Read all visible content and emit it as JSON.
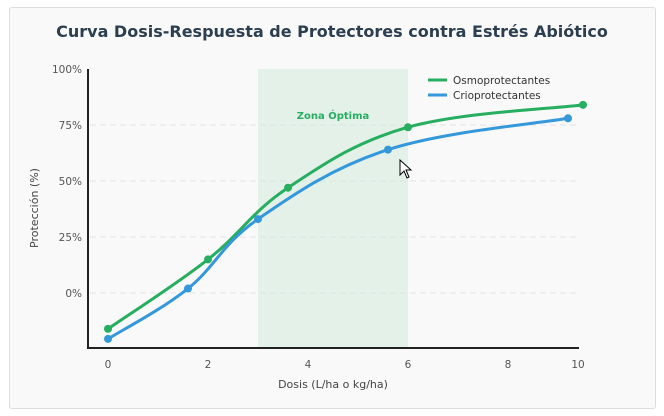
{
  "chart_data": {
    "type": "line",
    "title": "Curva Dosis-Respuesta de Protectores contra Estrés Abiótico",
    "xlabel": "Dosis (L/ha o kg/ha)",
    "ylabel": "Protección (%)",
    "xticks": [
      "0",
      "2",
      "4",
      "6",
      "8",
      "10"
    ],
    "yticks": [
      "0%",
      "25%",
      "50%",
      "75%",
      "100%"
    ],
    "ylim": [
      -25,
      100
    ],
    "grid": "horizontal dashed",
    "legend": "top-right",
    "annotation": {
      "label": "Zona Óptima",
      "x_range": [
        3,
        6
      ],
      "color": "#27ae60"
    },
    "series": [
      {
        "name": "Osmoprotectantes",
        "color": "#27ae60",
        "x": [
          0,
          2,
          3.6,
          6,
          9.5
        ],
        "y": [
          -16,
          15,
          47,
          74,
          84
        ]
      },
      {
        "name": "Crioprotectantes",
        "color": "#3498db",
        "x": [
          0,
          1.6,
          3,
          5.6,
          9.2
        ],
        "y": [
          -20.5,
          2,
          33,
          64,
          78
        ]
      }
    ]
  }
}
